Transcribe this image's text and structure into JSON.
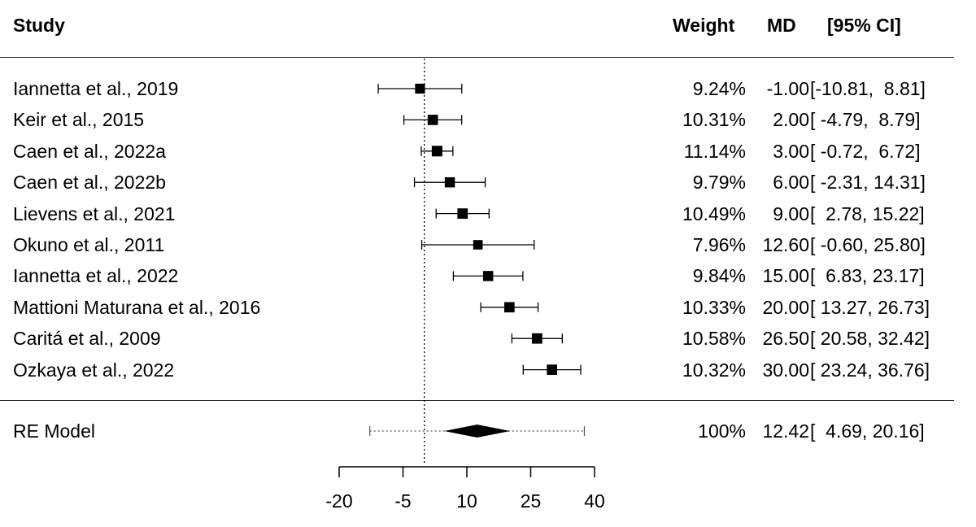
{
  "header": {
    "study": "Study",
    "weight": "Weight",
    "md": "MD",
    "ci": "[95% CI]"
  },
  "chart_data": {
    "type": "forest",
    "title": "",
    "xlabel": "",
    "x_ticks": [
      -20,
      -5,
      10,
      25,
      40
    ],
    "reference_line": 0,
    "studies": [
      {
        "label": "Iannetta et al., 2019",
        "weight": "9.24%",
        "md": -1.0,
        "md_text": "-1.00",
        "lo": -10.81,
        "hi": 8.81,
        "ci_text": "[-10.81,  8.81]",
        "weight_value": 9.24
      },
      {
        "label": "Keir et al., 2015",
        "weight": "10.31%",
        "md": 2.0,
        "md_text": "2.00",
        "lo": -4.79,
        "hi": 8.79,
        "ci_text": "[ -4.79,  8.79]",
        "weight_value": 10.31
      },
      {
        "label": "Caen et al., 2022a",
        "weight": "11.14%",
        "md": 3.0,
        "md_text": "3.00",
        "lo": -0.72,
        "hi": 6.72,
        "ci_text": "[ -0.72,  6.72]",
        "weight_value": 11.14
      },
      {
        "label": "Caen et al., 2022b",
        "weight": "9.79%",
        "md": 6.0,
        "md_text": "6.00",
        "lo": -2.31,
        "hi": 14.31,
        "ci_text": "[ -2.31, 14.31]",
        "weight_value": 9.79
      },
      {
        "label": "Lievens et al., 2021",
        "weight": "10.49%",
        "md": 9.0,
        "md_text": "9.00",
        "lo": 2.78,
        "hi": 15.22,
        "ci_text": "[  2.78, 15.22]",
        "weight_value": 10.49
      },
      {
        "label": "Okuno et al., 2011",
        "weight": "7.96%",
        "md": 12.6,
        "md_text": "12.60",
        "lo": -0.6,
        "hi": 25.8,
        "ci_text": "[ -0.60, 25.80]",
        "weight_value": 7.96
      },
      {
        "label": "Iannetta et al., 2022",
        "weight": "9.84%",
        "md": 15.0,
        "md_text": "15.00",
        "lo": 6.83,
        "hi": 23.17,
        "ci_text": "[  6.83, 23.17]",
        "weight_value": 9.84
      },
      {
        "label": "Mattioni Maturana et al., 2016",
        "weight": "10.33%",
        "md": 20.0,
        "md_text": "20.00",
        "lo": 13.27,
        "hi": 26.73,
        "ci_text": "[ 13.27, 26.73]",
        "weight_value": 10.33
      },
      {
        "label": "Caritá et al., 2009",
        "weight": "10.58%",
        "md": 26.5,
        "md_text": "26.50",
        "lo": 20.58,
        "hi": 32.42,
        "ci_text": "[ 20.58, 32.42]",
        "weight_value": 10.58
      },
      {
        "label": "Ozkaya et al., 2022",
        "weight": "10.32%",
        "md": 30.0,
        "md_text": "30.00",
        "lo": 23.24,
        "hi": 36.76,
        "ci_text": "[ 23.24, 36.76]",
        "weight_value": 10.32
      }
    ],
    "summary": {
      "label": "RE Model",
      "weight": "100%",
      "md": 12.42,
      "md_text": "12.42",
      "lo": 4.69,
      "hi": 20.16,
      "ci_text": "[  4.69, 20.16]",
      "pi_lo": -12.8,
      "pi_hi": 37.6
    }
  }
}
